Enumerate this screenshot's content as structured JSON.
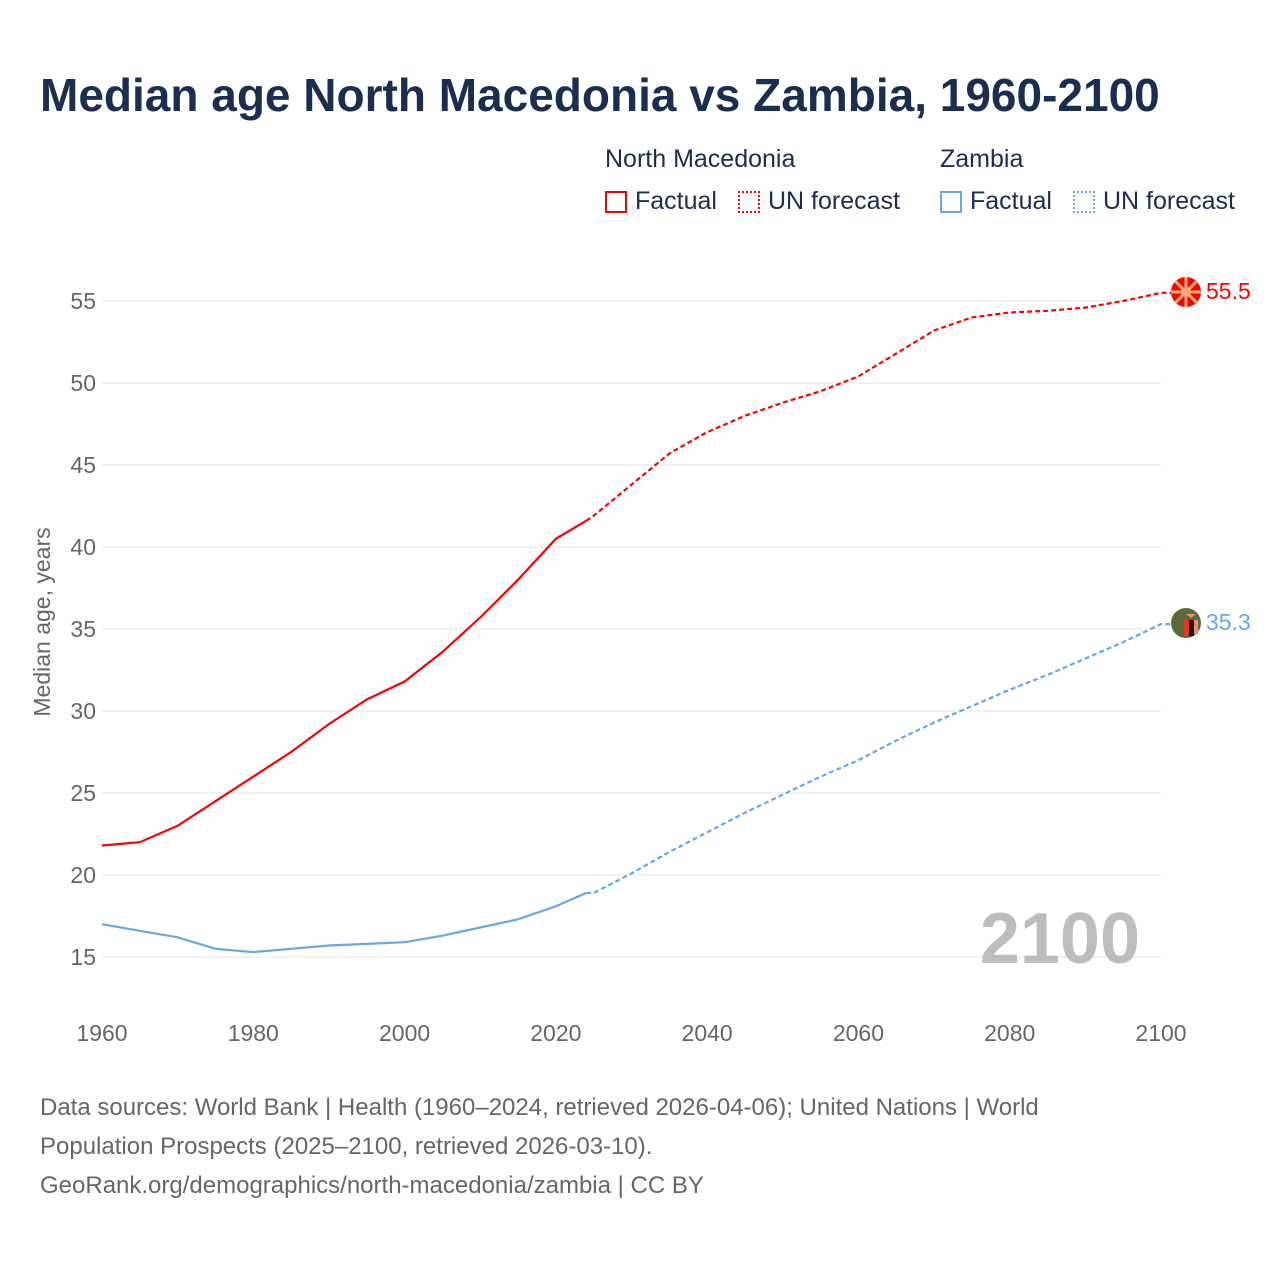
{
  "title": "Median age North Macedonia vs Zambia, 1960-2100",
  "legend": {
    "groups": [
      {
        "name": "North Macedonia",
        "color": "#ff0000",
        "items": [
          "Factual",
          "UN forecast"
        ]
      },
      {
        "name": "Zambia",
        "color": "#66a8e8",
        "items": [
          "Factual",
          "UN forecast"
        ]
      }
    ]
  },
  "footer": {
    "line1": "Data sources: World Bank | Health (1960–2024, retrieved 2026-04-06); United Nations | World",
    "line2": "Population Prospects (2025–2100, retrieved 2026-03-10).",
    "line3": "GeoRank.org/demographics/north-macedonia/zambia | CC BY"
  },
  "chart_data": {
    "type": "line",
    "title": "Median age North Macedonia vs Zambia, 1960-2100",
    "ylabel": "Median age, years",
    "xlabel": "",
    "xlim": [
      1960,
      2100
    ],
    "ylim": [
      15,
      55
    ],
    "xticks": [
      "1960",
      "1980",
      "2000",
      "2020",
      "2040",
      "2060",
      "2080",
      "2100"
    ],
    "yticks": [
      "15",
      "20",
      "25",
      "30",
      "35",
      "40",
      "45",
      "50",
      "55"
    ],
    "year_label": "2100",
    "forecast_start": 2024,
    "x": [
      1960,
      1965,
      1970,
      1975,
      1980,
      1985,
      1990,
      1995,
      2000,
      2005,
      2010,
      2015,
      2020,
      2024,
      2025,
      2030,
      2035,
      2040,
      2045,
      2050,
      2055,
      2060,
      2065,
      2070,
      2075,
      2080,
      2085,
      2090,
      2095,
      2100
    ],
    "series": [
      {
        "name": "North Macedonia",
        "color": "#ff0000",
        "end_label": "55.5",
        "values": [
          21.8,
          22.0,
          23.0,
          24.5,
          26.0,
          27.5,
          29.2,
          30.7,
          31.8,
          33.6,
          35.7,
          38.0,
          40.5,
          41.6,
          41.9,
          43.8,
          45.7,
          47.0,
          48.0,
          48.8,
          49.5,
          50.4,
          51.8,
          53.2,
          54.0,
          54.3,
          54.4,
          54.6,
          55.0,
          55.5
        ]
      },
      {
        "name": "Zambia",
        "color": "#66a8e8",
        "end_label": "35.3",
        "values": [
          17.0,
          16.6,
          16.2,
          15.5,
          15.3,
          15.5,
          15.7,
          15.8,
          15.9,
          16.3,
          16.8,
          17.3,
          18.1,
          18.9,
          18.9,
          20.1,
          21.4,
          22.6,
          23.8,
          24.9,
          26.0,
          27.0,
          28.2,
          29.3,
          30.3,
          31.3,
          32.2,
          33.2,
          34.2,
          35.3
        ]
      }
    ]
  }
}
